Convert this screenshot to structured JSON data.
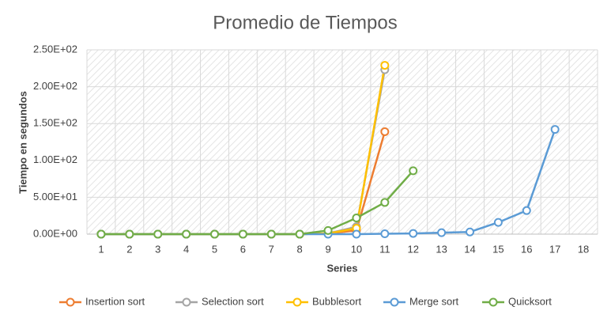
{
  "chart_data": {
    "type": "line",
    "title": "Promedio de Tiempos",
    "x_label": "Series",
    "y_label": "Tiempo en segundos",
    "categories": [
      "1",
      "2",
      "3",
      "4",
      "5",
      "6",
      "7",
      "8",
      "9",
      "10",
      "11",
      "12",
      "13",
      "14",
      "15",
      "16",
      "17",
      "18"
    ],
    "series": [
      {
        "name": "Insertion sort",
        "color": "#ed7d31",
        "values": [
          0,
          0,
          0,
          0,
          0,
          0,
          0,
          0,
          1,
          5,
          139,
          null,
          null,
          null,
          null,
          null,
          null,
          null
        ]
      },
      {
        "name": "Selection sort",
        "color": "#a5a5a5",
        "values": [
          0,
          0,
          0,
          0,
          0,
          0,
          0,
          0,
          1,
          10,
          223,
          null,
          null,
          null,
          null,
          null,
          null,
          null
        ]
      },
      {
        "name": "Bubblesort",
        "color": "#ffc000",
        "values": [
          0,
          0,
          0,
          0,
          0,
          0,
          0,
          0,
          1,
          8,
          229,
          null,
          null,
          null,
          null,
          null,
          null,
          null
        ]
      },
      {
        "name": "Merge sort",
        "color": "#5b9bd5",
        "values": [
          0,
          0,
          0,
          0,
          0,
          0,
          0,
          0,
          0,
          0,
          0.5,
          1,
          2,
          3,
          16,
          32,
          142,
          null
        ]
      },
      {
        "name": "Quicksort",
        "color": "#70ad47",
        "values": [
          0,
          0,
          0,
          0,
          0,
          0,
          0,
          0,
          5,
          22,
          43,
          86,
          null,
          null,
          null,
          null,
          null,
          null
        ]
      }
    ],
    "ylim": [
      0,
      250
    ],
    "yticks": [
      {
        "value": 0,
        "label": "0.00E+00"
      },
      {
        "value": 50,
        "label": "5.00E+01"
      },
      {
        "value": 100,
        "label": "1.00E+02"
      },
      {
        "value": 150,
        "label": "1.50E+02"
      },
      {
        "value": 200,
        "label": "2.00E+02"
      },
      {
        "value": 250,
        "label": "2.50E+02"
      }
    ],
    "grid": true,
    "legend": "bottom"
  }
}
